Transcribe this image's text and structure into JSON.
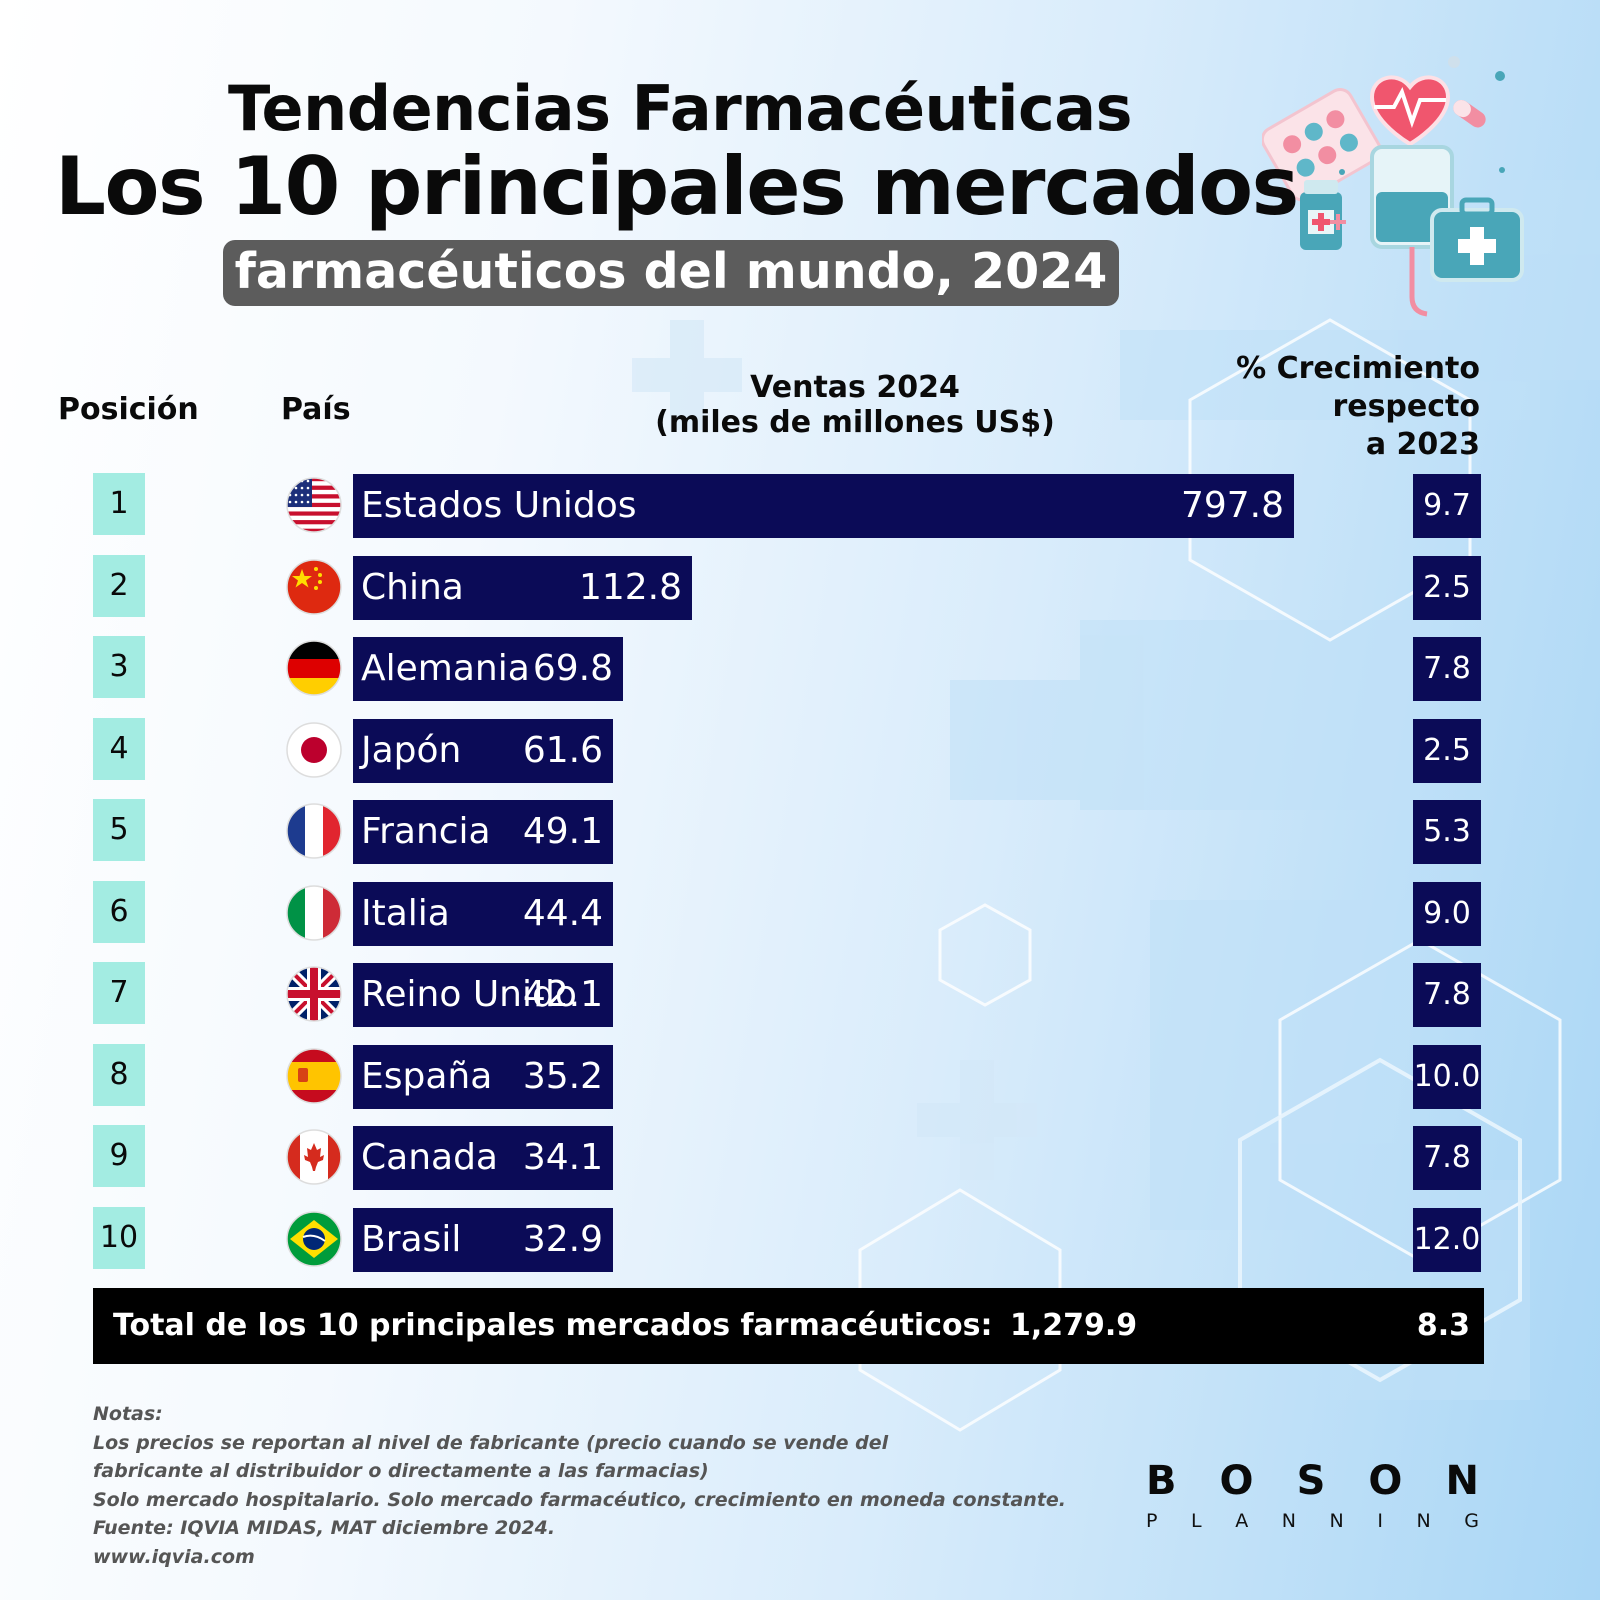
{
  "header": {
    "title_line1": "Tendencias Farmacéuticas",
    "title_line2": "Los 10 principales mercados",
    "title_line3": "farmacéuticos del mundo, 2024"
  },
  "columns": {
    "position": "Posición",
    "country": "País",
    "sales_line1": "Ventas 2024",
    "sales_line2": "(miles de millones US$)",
    "growth_line1": "% Crecimiento",
    "growth_line2": "respecto",
    "growth_line3": "a 2023"
  },
  "chart_data": {
    "type": "bar",
    "orientation": "horizontal",
    "title": "Los 10 principales mercados farmacéuticos del mundo, 2024",
    "xlabel": "Ventas 2024 (miles de millones US$)",
    "categories": [
      "Estados Unidos",
      "China",
      "Alemania",
      "Japón",
      "Francia",
      "Italia",
      "Reino Unido",
      "España",
      "Canada",
      "Brasil"
    ],
    "ranks": [
      "1",
      "2",
      "3",
      "4",
      "5",
      "6",
      "7",
      "8",
      "9",
      "10"
    ],
    "values": [
      797.8,
      112.8,
      69.8,
      61.6,
      49.1,
      44.4,
      42.1,
      35.2,
      34.1,
      32.9
    ],
    "value_labels": [
      "797.8",
      "112.8",
      "69.8",
      "61.6",
      "49.1",
      "44.4",
      "42.1",
      "35.2",
      "34.1",
      "32.9"
    ],
    "growth": [
      9.7,
      2.5,
      7.8,
      2.5,
      5.3,
      9.0,
      7.8,
      10.0,
      7.8,
      12.0
    ],
    "growth_labels": [
      "9.7",
      "2.5",
      "7.8",
      "2.5",
      "5.3",
      "9.0",
      "7.8",
      "10.0",
      "7.8",
      "12.0"
    ],
    "flags": [
      "us-flag-icon",
      "cn-flag-icon",
      "de-flag-icon",
      "jp-flag-icon",
      "fr-flag-icon",
      "it-flag-icon",
      "gb-flag-icon",
      "es-flag-icon",
      "ca-flag-icon",
      "br-flag-icon"
    ]
  },
  "total": {
    "label": "Total de los 10 principales mercados farmacéuticos:",
    "value": "1,279.9",
    "growth": "8.3"
  },
  "notes": {
    "heading": "Notas:",
    "line1": "Los precios se reportan al nivel de fabricante (precio cuando se vende del",
    "line2": "fabricante al distribuidor o directamente a las farmacias)",
    "line3": "Solo mercado hospitalario. Solo mercado farmacéutico, crecimiento en moneda constante.",
    "line4": "Fuente: IQVIA MIDAS, MAT diciembre 2024.",
    "line5": "www.iqvia.com"
  },
  "logo": {
    "line1": "BOSON",
    "line2": "PLANNING"
  },
  "colors": {
    "bar": "#0b0b57",
    "rank_bg": "#a3ece2",
    "title_pill": "#5c5c5c",
    "total_bg": "#000000"
  }
}
